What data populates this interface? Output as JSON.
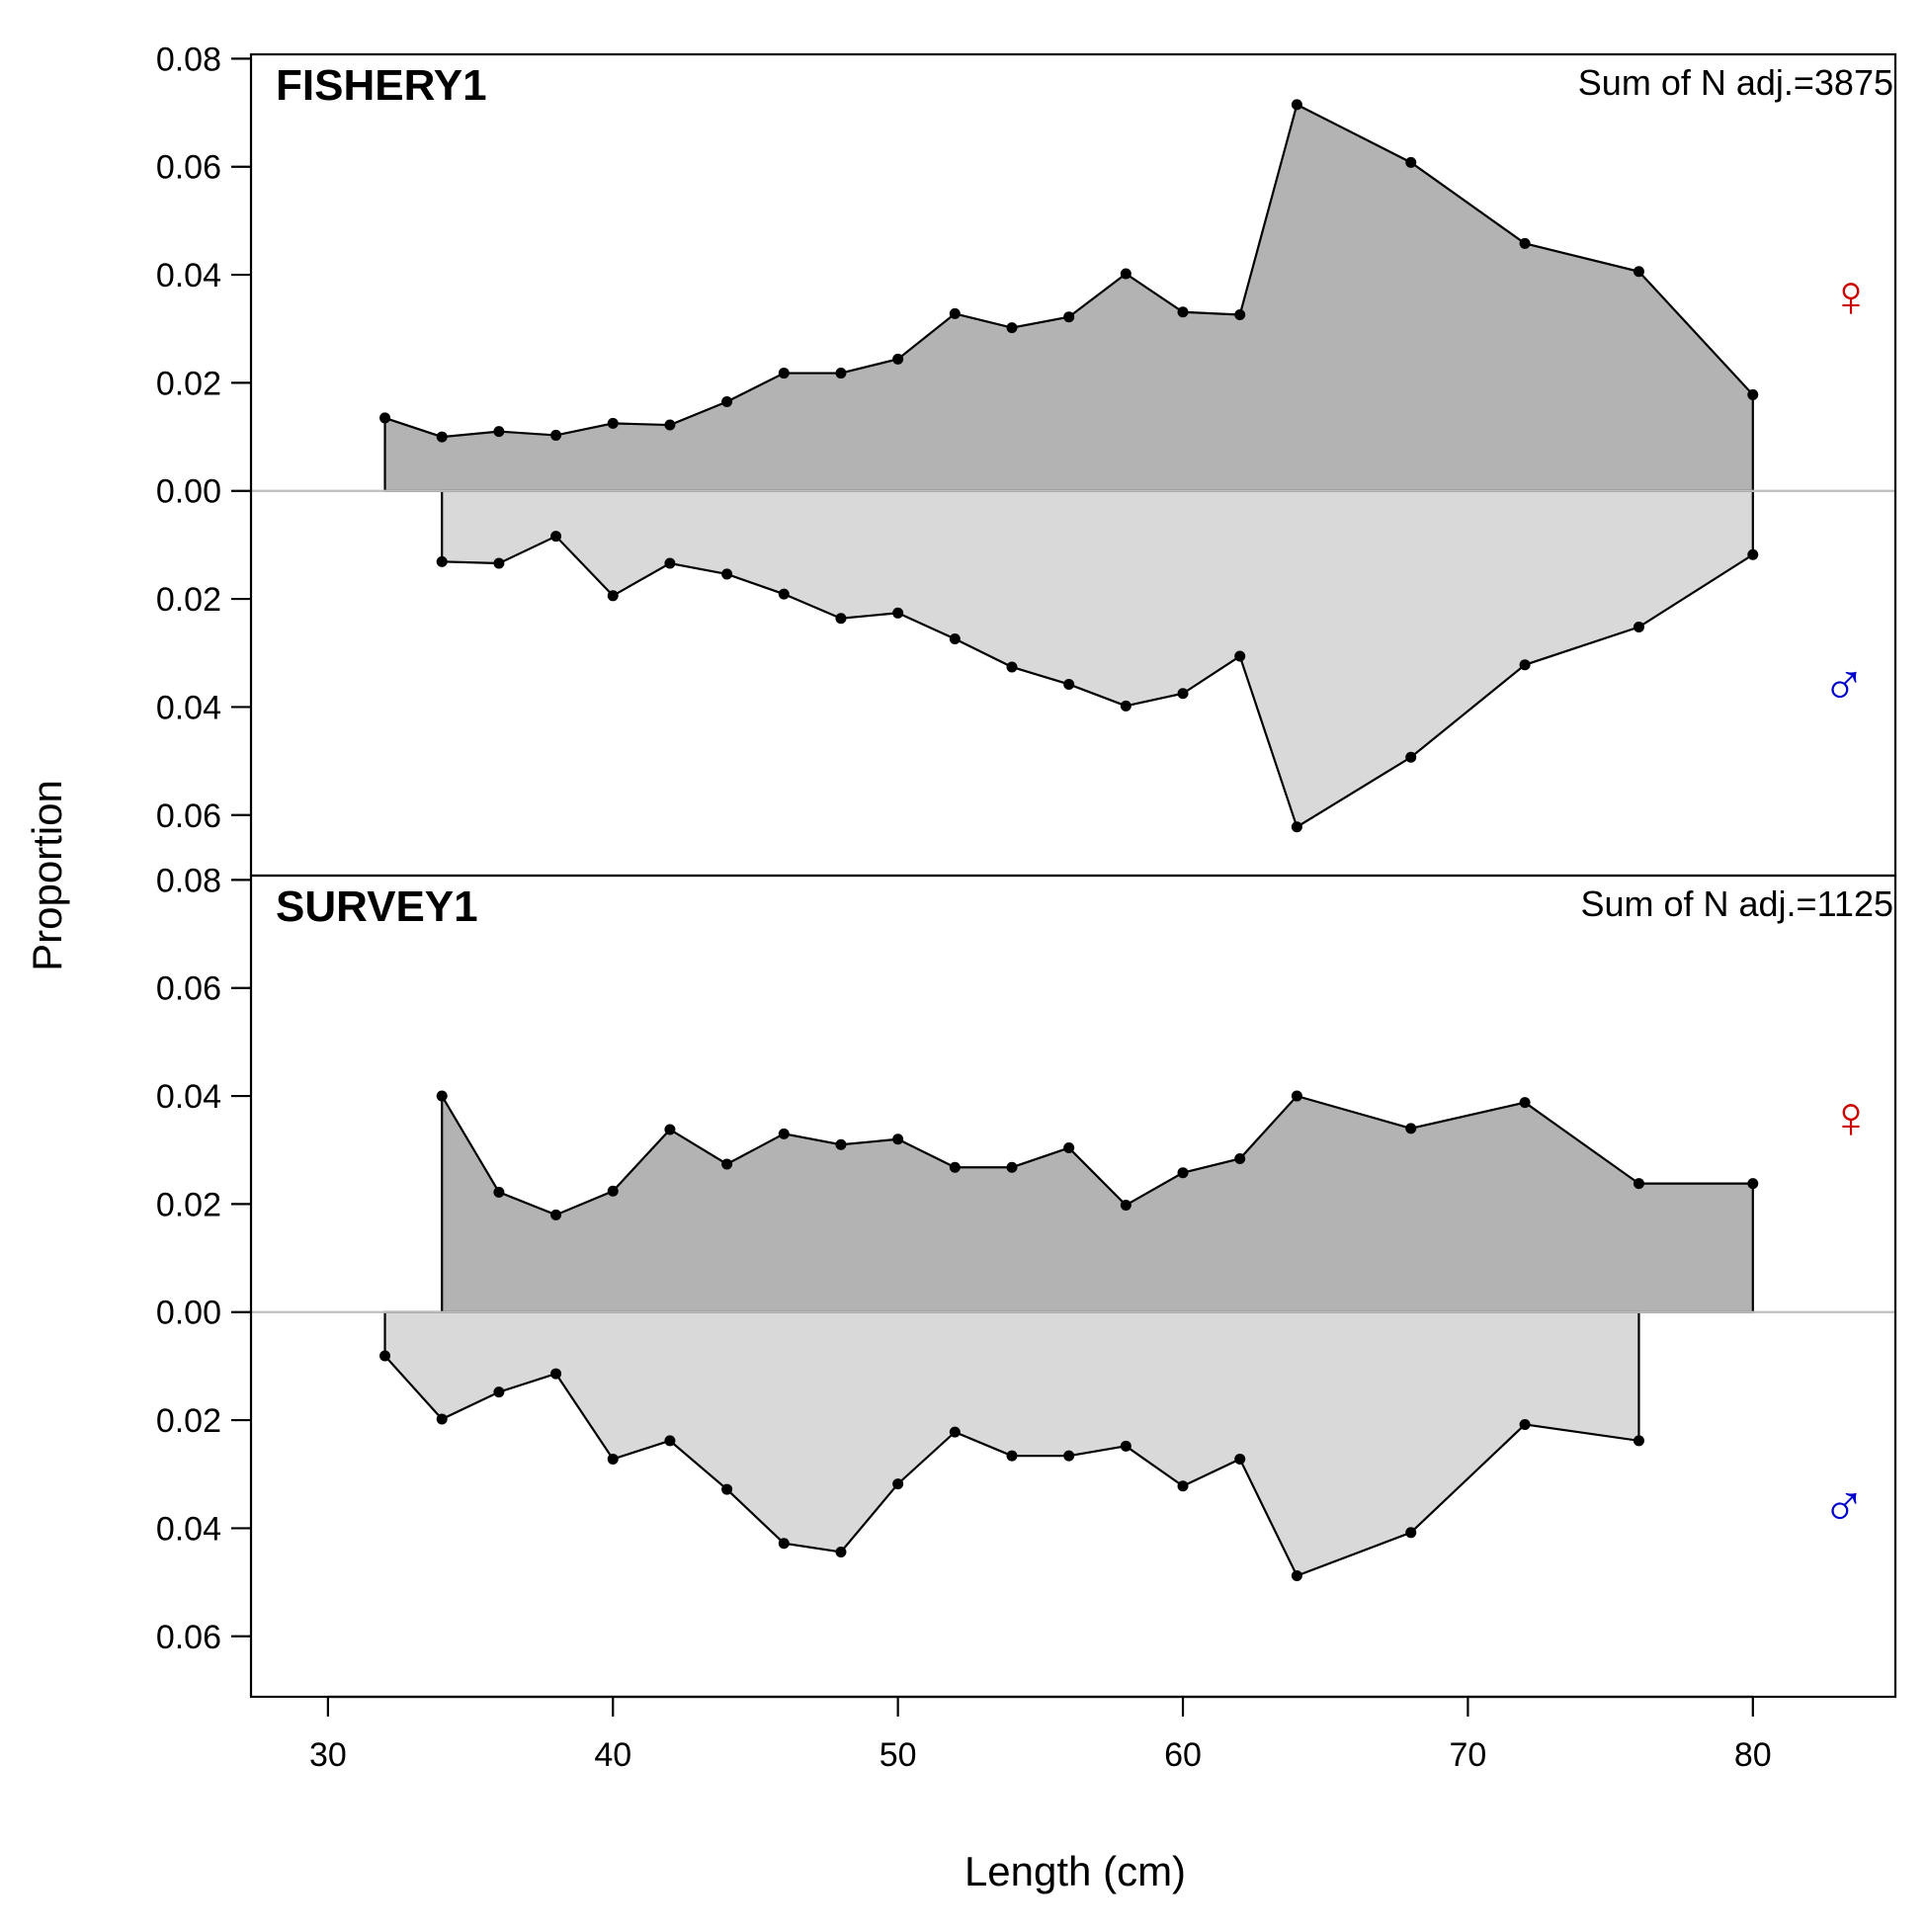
{
  "chart_data": {
    "type": "area",
    "xlabel": "Length (cm)",
    "ylabel": "Proportion",
    "xlim": [
      27.3,
      85.0
    ],
    "x_ticks": [
      30,
      40,
      50,
      60,
      70,
      80
    ],
    "y_tick_values": [
      0.08,
      0.06,
      0.04,
      0.02,
      0.0,
      -0.02,
      -0.04,
      -0.06
    ],
    "y_tick_labels": [
      "0.08",
      "0.06",
      "0.04",
      "0.02",
      "0.00",
      "0.02",
      "0.04",
      "0.06"
    ],
    "ylim": [
      -0.0712,
      0.0808
    ],
    "grid": false,
    "zero_line": true,
    "colors": {
      "female_fill": "#b3b3b3",
      "male_fill": "#d9d9d9",
      "outline": "#000000",
      "zero_line": "#bebebe",
      "female_symbol": "#cc0000",
      "male_symbol": "#0000cc"
    },
    "series_symbols": {
      "female": "♀",
      "male": "♂"
    },
    "panels": [
      {
        "title": "FISHERY1",
        "sum_label": "Sum of N adj.=3875",
        "female": {
          "x": [
            32,
            34,
            36,
            38,
            40,
            42,
            44,
            46,
            48,
            50,
            52,
            54,
            56,
            58,
            60,
            62,
            64,
            68,
            72,
            76,
            80
          ],
          "y": [
            0.0135,
            0.01,
            0.011,
            0.0103,
            0.0125,
            0.0122,
            0.0165,
            0.0218,
            0.0218,
            0.0244,
            0.0328,
            0.0302,
            0.0322,
            0.0402,
            0.0331,
            0.0326,
            0.0715,
            0.0608,
            0.0458,
            0.0406,
            0.0178
          ]
        },
        "male": {
          "x": [
            34,
            36,
            38,
            40,
            42,
            44,
            46,
            48,
            50,
            52,
            54,
            56,
            58,
            60,
            62,
            64,
            68,
            72,
            76,
            80
          ],
          "y": [
            0.0131,
            0.0134,
            0.0084,
            0.0194,
            0.0134,
            0.0154,
            0.0191,
            0.0236,
            0.0226,
            0.0274,
            0.0326,
            0.0358,
            0.0398,
            0.0375,
            0.0306,
            0.0622,
            0.0493,
            0.0322,
            0.0252,
            0.0118
          ]
        }
      },
      {
        "title": "SURVEY1",
        "sum_label": "Sum of N adj.=1125",
        "female": {
          "x": [
            34,
            36,
            38,
            40,
            42,
            44,
            46,
            48,
            50,
            52,
            54,
            56,
            58,
            60,
            62,
            64,
            68,
            72,
            76,
            80
          ],
          "y": [
            0.04,
            0.0222,
            0.018,
            0.0224,
            0.0338,
            0.0274,
            0.033,
            0.031,
            0.032,
            0.0268,
            0.0268,
            0.0304,
            0.0198,
            0.0258,
            0.0284,
            0.04,
            0.034,
            0.0388,
            0.0238,
            0.0238
          ]
        },
        "male": {
          "x": [
            32,
            34,
            36,
            38,
            40,
            42,
            44,
            46,
            48,
            50,
            52,
            54,
            56,
            58,
            60,
            62,
            64,
            68,
            72,
            76
          ],
          "y": [
            0.0081,
            0.0198,
            0.0148,
            0.0114,
            0.0272,
            0.0238,
            0.0328,
            0.0428,
            0.0444,
            0.0318,
            0.0222,
            0.0266,
            0.0266,
            0.0248,
            0.0322,
            0.0272,
            0.0488,
            0.0408,
            0.0208,
            0.0238
          ]
        }
      }
    ]
  }
}
